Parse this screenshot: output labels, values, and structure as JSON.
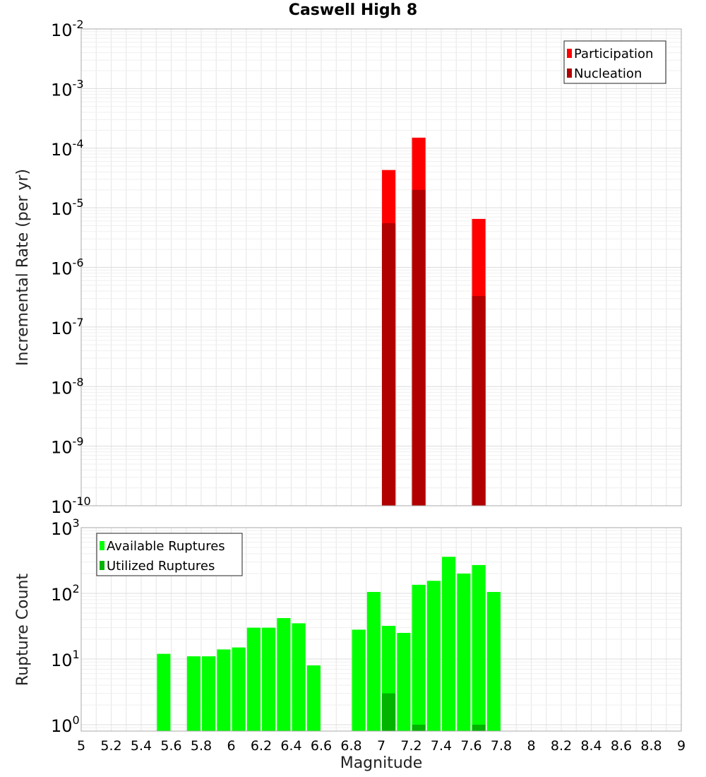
{
  "chart_data": [
    {
      "type": "bar",
      "title": "Caswell High 8",
      "ylabel": "Incremental Rate (per yr)",
      "xlabel": "",
      "yscale": "log",
      "ylim": [
        1e-10,
        0.01
      ],
      "xlim": [
        5,
        9
      ],
      "grid": true,
      "legend_position": "top-right",
      "bar_width": 0.09,
      "y_ticks": [
        "10^-10",
        "10^-9",
        "10^-8",
        "10^-7",
        "10^-6",
        "10^-5",
        "10^-4",
        "10^-3",
        "10^-2"
      ],
      "series": [
        {
          "name": "Participation",
          "color": "#ff0000",
          "points": [
            {
              "x": 7.05,
              "y": 4.3e-05
            },
            {
              "x": 7.25,
              "y": 0.00015
            },
            {
              "x": 7.65,
              "y": 6.5e-06
            }
          ]
        },
        {
          "name": "Nucleation",
          "color": "#b00000",
          "points": [
            {
              "x": 7.05,
              "y": 5.5e-06
            },
            {
              "x": 7.25,
              "y": 2e-05
            },
            {
              "x": 7.65,
              "y": 3.3e-07
            }
          ]
        }
      ]
    },
    {
      "type": "bar",
      "title": "",
      "ylabel": "Rupture Count",
      "xlabel": "Magnitude",
      "yscale": "log",
      "ylim": [
        0.8,
        1000
      ],
      "xlim": [
        5,
        9
      ],
      "grid": true,
      "legend_position": "top-left",
      "bar_width": 0.09,
      "y_ticks": [
        "10^0",
        "10^1",
        "10^2",
        "10^3"
      ],
      "x_ticks": [
        "5",
        "5.2",
        "5.4",
        "5.6",
        "5.8",
        "6",
        "6.2",
        "6.4",
        "6.6",
        "6.8",
        "7",
        "7.2",
        "7.4",
        "7.6",
        "7.8",
        "8",
        "8.2",
        "8.4",
        "8.6",
        "8.8",
        "9"
      ],
      "series": [
        {
          "name": "Available Ruptures",
          "color": "#00ff00",
          "points": [
            {
              "x": 5.55,
              "y": 12
            },
            {
              "x": 5.75,
              "y": 11
            },
            {
              "x": 5.85,
              "y": 11
            },
            {
              "x": 5.95,
              "y": 14
            },
            {
              "x": 6.05,
              "y": 15
            },
            {
              "x": 6.15,
              "y": 30
            },
            {
              "x": 6.25,
              "y": 30
            },
            {
              "x": 6.35,
              "y": 42
            },
            {
              "x": 6.45,
              "y": 35
            },
            {
              "x": 6.55,
              "y": 8
            },
            {
              "x": 6.85,
              "y": 28
            },
            {
              "x": 6.95,
              "y": 105
            },
            {
              "x": 7.05,
              "y": 32
            },
            {
              "x": 7.15,
              "y": 25
            },
            {
              "x": 7.25,
              "y": 135
            },
            {
              "x": 7.35,
              "y": 155
            },
            {
              "x": 7.45,
              "y": 360
            },
            {
              "x": 7.55,
              "y": 200
            },
            {
              "x": 7.65,
              "y": 270
            },
            {
              "x": 7.75,
              "y": 105
            }
          ]
        },
        {
          "name": "Utilized Ruptures",
          "color": "#00b400",
          "points": [
            {
              "x": 7.05,
              "y": 3
            },
            {
              "x": 7.25,
              "y": 1
            },
            {
              "x": 7.65,
              "y": 1
            }
          ]
        }
      ]
    }
  ]
}
